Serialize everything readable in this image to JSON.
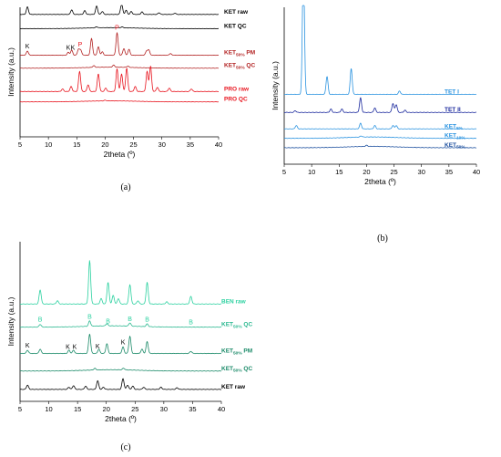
{
  "chart_data": [
    {
      "panel": "(a)",
      "type": "line",
      "xlabel": "2theta (º)",
      "ylabel": "Intensity (a.u.)",
      "xlim": [
        5,
        40
      ],
      "xticks": [
        "5",
        "10",
        "15",
        "20",
        "25",
        "30",
        "35",
        "40"
      ],
      "series": [
        {
          "name": "KET raw",
          "color": "#000000",
          "baseline": 0.945,
          "peaks": [
            [
              6.3,
              0.9
            ],
            [
              14.1,
              0.55
            ],
            [
              16.4,
              0.45
            ],
            [
              18.5,
              1.0
            ],
            [
              19.5,
              0.35
            ],
            [
              22.9,
              1.3
            ],
            [
              23.7,
              0.5
            ],
            [
              24.6,
              0.35
            ],
            [
              26.5,
              0.3
            ],
            [
              29.5,
              0.2
            ],
            [
              32.3,
              0.15
            ]
          ]
        },
        {
          "name": "KET QC",
          "color": "#000000",
          "baseline": 0.835,
          "peaks": [
            [
              18.5,
              0.12
            ],
            [
              23,
              0.1
            ]
          ]
        },
        {
          "name": "KET50% PM",
          "color": "#b22222",
          "baseline": 0.63,
          "peaks": [
            [
              6.3,
              0.5
            ],
            [
              13.5,
              0.35
            ],
            [
              14.1,
              0.6
            ],
            [
              15.3,
              0.7
            ],
            [
              15.7,
              0.6
            ],
            [
              17.6,
              2.0
            ],
            [
              18.8,
              1.0
            ],
            [
              19.5,
              0.4
            ],
            [
              22.1,
              2.7
            ],
            [
              23.3,
              0.8
            ],
            [
              24.2,
              0.7
            ],
            [
              27.3,
              0.5
            ],
            [
              27.7,
              0.6
            ],
            [
              31.5,
              0.2
            ]
          ]
        },
        {
          "name": "KET50% QC",
          "color": "#b22222",
          "baseline": 0.53,
          "peaks": [
            [
              18,
              0.2
            ],
            [
              21.5,
              0.25
            ],
            [
              24,
              0.15
            ]
          ]
        },
        {
          "name": "PRO raw",
          "color": "#e8141e",
          "baseline": 0.35,
          "peaks": [
            [
              12.5,
              0.3
            ],
            [
              14.0,
              0.6
            ],
            [
              15.5,
              2.4
            ],
            [
              17.0,
              0.8
            ],
            [
              18.8,
              2.1
            ],
            [
              20.1,
              0.4
            ],
            [
              22.1,
              2.7
            ],
            [
              22.9,
              2.1
            ],
            [
              23.8,
              2.8
            ],
            [
              25.3,
              0.6
            ],
            [
              27.4,
              2.4
            ],
            [
              28.0,
              3.0
            ],
            [
              29.2,
              0.5
            ],
            [
              31.3,
              0.4
            ],
            [
              35.2,
              0.3
            ]
          ]
        },
        {
          "name": "PRO QC",
          "color": "#e8141e",
          "baseline": 0.27,
          "peaks": [
            [
              20,
              0.08
            ]
          ]
        }
      ],
      "annotations": [
        {
          "text": "K",
          "x": 6.3,
          "color": "#000000"
        },
        {
          "text": "K",
          "x": 13.5,
          "color": "#000000"
        },
        {
          "text": "K",
          "x": 14.3,
          "color": "#000000"
        },
        {
          "text": "P",
          "x": 15.6,
          "color": "#e8141e"
        },
        {
          "text": "P",
          "x": 22.1,
          "color": "#e8141e"
        }
      ]
    },
    {
      "panel": "(b)",
      "type": "line",
      "xlabel": "2theta (º)",
      "ylabel": "Intensity (a.u.)",
      "xlim": [
        5,
        40
      ],
      "xticks": [
        "5",
        "10",
        "15",
        "20",
        "25",
        "30",
        "35",
        "40"
      ],
      "series": [
        {
          "name": "TET I",
          "color": "#2a93e0",
          "baseline": 0.445,
          "peaks": [
            [
              8.5,
              12.0
            ],
            [
              12.8,
              1.6
            ],
            [
              17.2,
              2.3
            ],
            [
              26,
              0.3
            ]
          ]
        },
        {
          "name": "TET II",
          "color": "#1c2a9e",
          "baseline": 0.33,
          "peaks": [
            [
              7,
              0.15
            ],
            [
              13.5,
              0.3
            ],
            [
              15.5,
              0.3
            ],
            [
              18.9,
              1.3
            ],
            [
              21.5,
              0.4
            ],
            [
              24.8,
              0.8
            ],
            [
              25.4,
              0.7
            ],
            [
              27,
              0.2
            ]
          ]
        },
        {
          "name": "KET5%",
          "color": "#2a93e0",
          "baseline": 0.225,
          "peaks": [
            [
              7.2,
              0.3
            ],
            [
              18.9,
              0.5
            ],
            [
              21.5,
              0.3
            ],
            [
              24.8,
              0.3
            ],
            [
              25.4,
              0.3
            ]
          ]
        },
        {
          "name": "KET10%",
          "color": "#2a93e0",
          "baseline": 0.165,
          "peaks": [
            [
              19,
              0.1
            ]
          ]
        },
        {
          "name": "KET50%",
          "color": "#1c4f9e",
          "baseline": 0.105,
          "peaks": [
            [
              20,
              0.1
            ]
          ]
        }
      ],
      "annotations": []
    },
    {
      "panel": "(c)",
      "type": "line",
      "xlabel": "2theta (º)",
      "ylabel": "Intensity (a.u.)",
      "xlim": [
        5,
        40
      ],
      "xticks": [
        "5",
        "10",
        "15",
        "20",
        "25",
        "30",
        "35",
        "40"
      ],
      "series": [
        {
          "name": "BEN raw",
          "color": "#2bd1a0",
          "baseline": 0.61,
          "peaks": [
            [
              8.5,
              1.3
            ],
            [
              11.5,
              0.3
            ],
            [
              17.1,
              4.0
            ],
            [
              19.1,
              0.5
            ],
            [
              20.3,
              2.0
            ],
            [
              21.2,
              0.8
            ],
            [
              22.1,
              0.5
            ],
            [
              24.1,
              1.8
            ],
            [
              25.5,
              0.3
            ],
            [
              27.1,
              2.0
            ],
            [
              30.5,
              0.2
            ],
            [
              34.7,
              0.7
            ]
          ]
        },
        {
          "name": "KET50% QC",
          "color": "#2bb890",
          "baseline": 0.465,
          "peaks": [
            [
              8.5,
              0.25
            ],
            [
              17.1,
              0.5
            ],
            [
              20.1,
              0.2
            ],
            [
              24.1,
              0.3
            ],
            [
              27.1,
              0.25
            ]
          ]
        },
        {
          "name": "KET50% PM",
          "color": "#1a8a68",
          "baseline": 0.3,
          "peaks": [
            [
              6.3,
              0.3
            ],
            [
              8.5,
              0.4
            ],
            [
              13.5,
              0.3
            ],
            [
              14.3,
              0.3
            ],
            [
              17.1,
              1.8
            ],
            [
              18.7,
              0.4
            ],
            [
              20.1,
              0.9
            ],
            [
              22.9,
              0.6
            ],
            [
              24.1,
              1.6
            ],
            [
              26.2,
              0.4
            ],
            [
              27.1,
              1.1
            ],
            [
              34.7,
              0.2
            ]
          ]
        },
        {
          "name": "KET50% QC",
          "color": "#1a8a68",
          "baseline": 0.19,
          "peaks": [
            [
              18,
              0.15
            ],
            [
              23,
              0.15
            ]
          ]
        },
        {
          "name": "KET raw",
          "color": "#000000",
          "baseline": 0.075,
          "peaks": [
            [
              6.3,
              0.4
            ],
            [
              13.5,
              0.2
            ],
            [
              14.3,
              0.35
            ],
            [
              16.4,
              0.3
            ],
            [
              18.5,
              0.8
            ],
            [
              19.5,
              0.2
            ],
            [
              22.9,
              1.0
            ],
            [
              23.7,
              0.4
            ],
            [
              24.6,
              0.3
            ],
            [
              26.5,
              0.2
            ],
            [
              29.5,
              0.2
            ],
            [
              32.3,
              0.15
            ]
          ]
        }
      ],
      "annotations": [
        {
          "text": "K",
          "x": 6.3,
          "color": "#000000"
        },
        {
          "text": "K",
          "x": 13.3,
          "color": "#000000"
        },
        {
          "text": "K",
          "x": 14.5,
          "color": "#000000"
        },
        {
          "text": "K",
          "x": 18.5,
          "color": "#000000"
        },
        {
          "text": "K",
          "x": 22.9,
          "color": "#000000"
        },
        {
          "text": "B",
          "x": 8.5,
          "color": "#2bd1a0"
        },
        {
          "text": "B",
          "x": 17.1,
          "color": "#2bd1a0"
        },
        {
          "text": "B",
          "x": 20.3,
          "color": "#2bd1a0"
        },
        {
          "text": "B",
          "x": 24.1,
          "color": "#2bd1a0"
        },
        {
          "text": "B",
          "x": 27.1,
          "color": "#2bd1a0"
        },
        {
          "text": "B",
          "x": 34.7,
          "color": "#2bd1a0"
        }
      ]
    }
  ]
}
